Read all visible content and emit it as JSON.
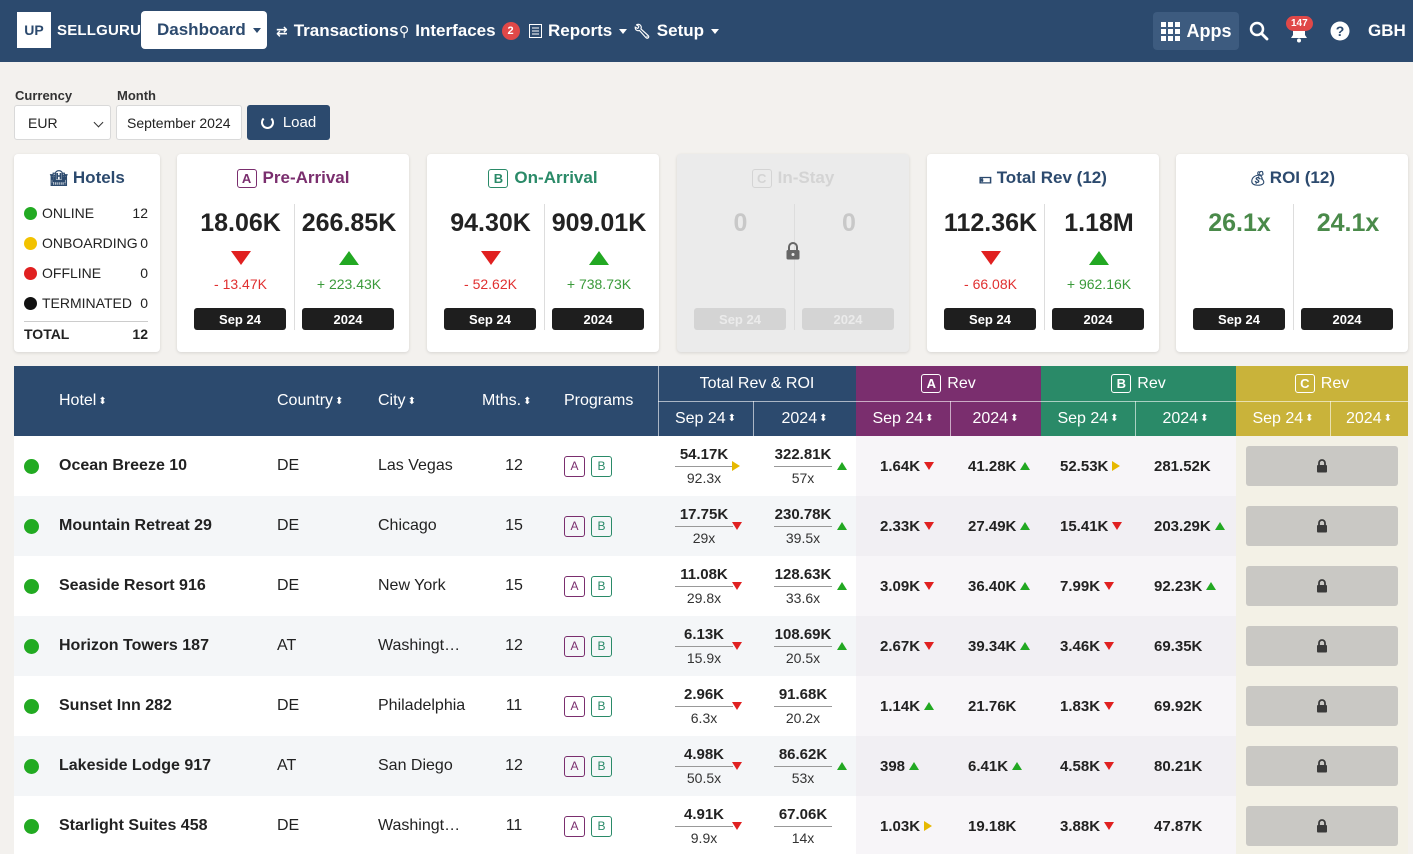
{
  "nav": {
    "logo_box": "UP",
    "logo_text": "SELLGURU",
    "dashboard": "Dashboard",
    "transactions": "Transactions",
    "interfaces": "Interfaces",
    "interfaces_badge": "2",
    "reports": "Reports",
    "setup": "Setup",
    "apps": "Apps",
    "notifications_badge": "147",
    "account": "GBH"
  },
  "filters": {
    "currency_label": "Currency",
    "currency_value": "EUR",
    "month_label": "Month",
    "month_value": "September 2024",
    "load_label": "Load"
  },
  "hotels_card": {
    "title": "Hotels",
    "statuses": [
      {
        "label": "ONLINE",
        "count": "12",
        "color": "#22aa22"
      },
      {
        "label": "ONBOARDING",
        "count": "0",
        "color": "#f2c200"
      },
      {
        "label": "OFFLINE",
        "count": "0",
        "color": "#e02020"
      },
      {
        "label": "TERMINATED",
        "count": "0",
        "color": "#111111"
      }
    ],
    "total_label": "TOTAL",
    "total_count": "12"
  },
  "metric_cards": {
    "pre_arrival": {
      "letter": "A",
      "title": "Pre-Arrival",
      "color": "#7a2e6e",
      "left_value": "18.06K",
      "left_diff": "- 13.47K",
      "right_value": "266.85K",
      "right_diff": "+ 223.43K",
      "left_period": "Sep 24",
      "right_period": "2024"
    },
    "on_arrival": {
      "letter": "B",
      "title": "On-Arrival",
      "color": "#2a8a68",
      "left_value": "94.30K",
      "left_diff": "- 52.62K",
      "right_value": "909.01K",
      "right_diff": "+ 738.73K",
      "left_period": "Sep 24",
      "right_period": "2024"
    },
    "in_stay": {
      "letter": "C",
      "title": "In-Stay",
      "left_value": "0",
      "right_value": "0",
      "left_period": "Sep 24",
      "right_period": "2024"
    },
    "total_rev": {
      "title": "Total Rev (12)",
      "left_value": "112.36K",
      "left_diff": "- 66.08K",
      "right_value": "1.18M",
      "right_diff": "+ 962.16K",
      "left_period": "Sep 24",
      "right_period": "2024"
    },
    "roi": {
      "title": "ROI (12)",
      "left_value": "26.1x",
      "right_value": "24.1x",
      "left_period": "Sep 24",
      "right_period": "2024"
    }
  },
  "table": {
    "headers": {
      "hotel": "Hotel",
      "country": "Country",
      "city": "City",
      "months": "Mths.",
      "programs": "Programs",
      "total_group": "Total Rev & ROI",
      "a_group": "Rev",
      "b_group": "Rev",
      "c_group": "Rev",
      "a_letter": "A",
      "b_letter": "B",
      "c_letter": "C",
      "sep": "Sep 24",
      "year": "2024"
    },
    "program_a": "A",
    "program_b": "B",
    "rows": [
      {
        "name": "Ocean Breeze 10",
        "country": "DE",
        "city": "Las Vegas",
        "months": "12",
        "tot_sep": "54.17K",
        "tot_sep_roi": "92.3x",
        "tot_sep_trend": "flat",
        "tot_year": "322.81K",
        "tot_year_roi": "57x",
        "tot_year_trend": "up",
        "a_sep": "1.64K",
        "a_sep_trend": "down",
        "a_year": "41.28K",
        "a_year_trend": "up",
        "b_sep": "52.53K",
        "b_sep_trend": "flat",
        "b_year": "281.52K",
        "b_year_trend": "none"
      },
      {
        "name": "Mountain Retreat 29",
        "country": "DE",
        "city": "Chicago",
        "months": "15",
        "tot_sep": "17.75K",
        "tot_sep_roi": "29x",
        "tot_sep_trend": "down",
        "tot_year": "230.78K",
        "tot_year_roi": "39.5x",
        "tot_year_trend": "up",
        "a_sep": "2.33K",
        "a_sep_trend": "down",
        "a_year": "27.49K",
        "a_year_trend": "up",
        "b_sep": "15.41K",
        "b_sep_trend": "down",
        "b_year": "203.29K",
        "b_year_trend": "up"
      },
      {
        "name": "Seaside Resort 916",
        "country": "DE",
        "city": "New York",
        "months": "15",
        "tot_sep": "11.08K",
        "tot_sep_roi": "29.8x",
        "tot_sep_trend": "down",
        "tot_year": "128.63K",
        "tot_year_roi": "33.6x",
        "tot_year_trend": "up",
        "a_sep": "3.09K",
        "a_sep_trend": "down",
        "a_year": "36.40K",
        "a_year_trend": "up",
        "b_sep": "7.99K",
        "b_sep_trend": "down",
        "b_year": "92.23K",
        "b_year_trend": "up"
      },
      {
        "name": "Horizon Towers 187",
        "country": "AT",
        "city": "Washingt…",
        "months": "12",
        "tot_sep": "6.13K",
        "tot_sep_roi": "15.9x",
        "tot_sep_trend": "down",
        "tot_year": "108.69K",
        "tot_year_roi": "20.5x",
        "tot_year_trend": "up",
        "a_sep": "2.67K",
        "a_sep_trend": "down",
        "a_year": "39.34K",
        "a_year_trend": "up",
        "b_sep": "3.46K",
        "b_sep_trend": "down",
        "b_year": "69.35K",
        "b_year_trend": "none"
      },
      {
        "name": "Sunset Inn 282",
        "country": "DE",
        "city": "Philadelphia",
        "months": "11",
        "tot_sep": "2.96K",
        "tot_sep_roi": "6.3x",
        "tot_sep_trend": "down",
        "tot_year": "91.68K",
        "tot_year_roi": "20.2x",
        "tot_year_trend": "none",
        "a_sep": "1.14K",
        "a_sep_trend": "up",
        "a_year": "21.76K",
        "a_year_trend": "none",
        "b_sep": "1.83K",
        "b_sep_trend": "down",
        "b_year": "69.92K",
        "b_year_trend": "none"
      },
      {
        "name": "Lakeside Lodge 917",
        "country": "AT",
        "city": "San Diego",
        "months": "12",
        "tot_sep": "4.98K",
        "tot_sep_roi": "50.5x",
        "tot_sep_trend": "down",
        "tot_year": "86.62K",
        "tot_year_roi": "53x",
        "tot_year_trend": "up",
        "a_sep": "398",
        "a_sep_trend": "up",
        "a_year": "6.41K",
        "a_year_trend": "up",
        "b_sep": "4.58K",
        "b_sep_trend": "down",
        "b_year": "80.21K",
        "b_year_trend": "none"
      },
      {
        "name": "Starlight Suites 458",
        "country": "DE",
        "city": "Washingt…",
        "months": "11",
        "tot_sep": "4.91K",
        "tot_sep_roi": "9.9x",
        "tot_sep_trend": "down",
        "tot_year": "67.06K",
        "tot_year_roi": "14x",
        "tot_year_trend": "none",
        "a_sep": "1.03K",
        "a_sep_trend": "flat",
        "a_year": "19.18K",
        "a_year_trend": "none",
        "b_sep": "3.88K",
        "b_sep_trend": "down",
        "b_year": "47.87K",
        "b_year_trend": "none"
      }
    ]
  },
  "colors": {
    "navy": "#2c4a6e",
    "purple": "#7a2e6e",
    "green": "#2a8a68",
    "olive": "#c9b33a",
    "up": "#22a822",
    "down": "#e02020",
    "flat": "#e6b800"
  }
}
